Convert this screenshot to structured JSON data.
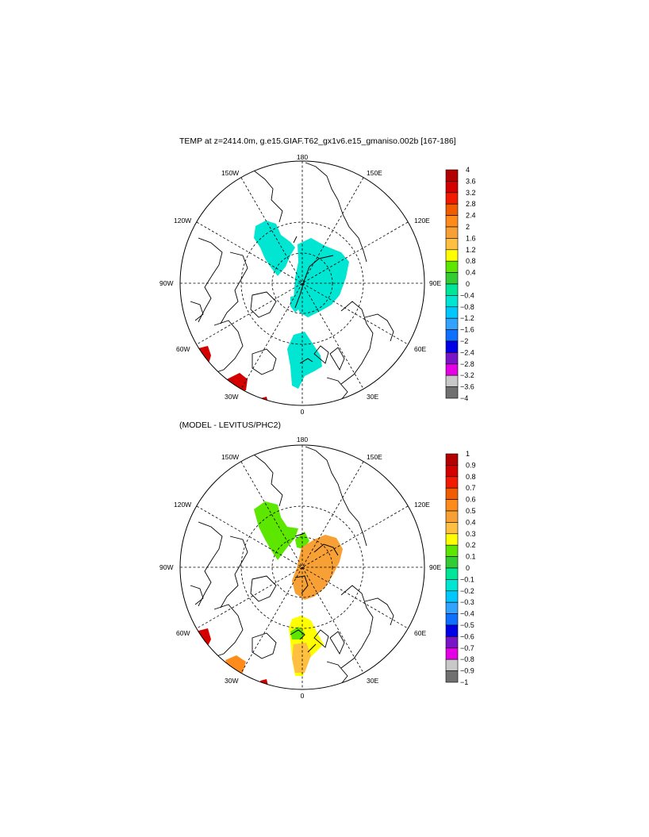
{
  "panels": [
    {
      "title": "TEMP at z=2414.0m, g.e15.GIAF.T62_gx1v6.e15_gmaniso.002b [167-186]",
      "lon_labels": {
        "top": "180",
        "bottom": "0",
        "left": "90W",
        "right": "90E",
        "ul1": "150W",
        "ul2": "120W",
        "ur1": "150E",
        "ur2": "120E",
        "ll1": "60W",
        "ll2": "30W",
        "lr1": "60E",
        "lr2": "30E"
      },
      "colorbar": {
        "labels": [
          "4",
          "3.6",
          "3.2",
          "2.8",
          "2.4",
          "2",
          "1.6",
          "1.2",
          "0.8",
          "0.4",
          "0",
          "−0.4",
          "−0.8",
          "−1.2",
          "−1.6",
          "−2",
          "−2.4",
          "−2.8",
          "−3.2",
          "−3.6",
          "−4"
        ],
        "colors": [
          "#b30000",
          "#d40000",
          "#f21a00",
          "#f25c00",
          "#ff8c1a",
          "#f7a035",
          "#ffbf40",
          "#ffff00",
          "#5ce600",
          "#33cc33",
          "#00e699",
          "#00e6d2",
          "#00c8ff",
          "#33a3ff",
          "#0f70ff",
          "#0000e6",
          "#7a14c7",
          "#e600e6",
          "#c8c8c8",
          "#707070"
        ]
      }
    },
    {
      "title": "(MODEL - LEVITUS/PHC2)",
      "lon_labels": {
        "top": "180",
        "bottom": "0",
        "left": "90W",
        "right": "90E",
        "ul1": "150W",
        "ul2": "120W",
        "ur1": "150E",
        "ur2": "120E",
        "ll1": "60W",
        "ll2": "30W",
        "lr1": "60E",
        "lr2": "30E"
      },
      "colorbar": {
        "labels": [
          "1",
          "0.9",
          "0.8",
          "0.7",
          "0.6",
          "0.5",
          "0.4",
          "0.3",
          "0.2",
          "0.1",
          "0",
          "−0.1",
          "−0.2",
          "−0.3",
          "−0.4",
          "−0.5",
          "−0.6",
          "−0.7",
          "−0.8",
          "−0.9",
          "−1"
        ],
        "colors": [
          "#b30000",
          "#d40000",
          "#f21a00",
          "#f25c00",
          "#ff8c1a",
          "#f7a035",
          "#ffbf40",
          "#ffff00",
          "#5ce600",
          "#33cc33",
          "#00e699",
          "#00e6d2",
          "#00c8ff",
          "#33a3ff",
          "#0f70ff",
          "#0000e6",
          "#7a14c7",
          "#e600e6",
          "#c8c8c8",
          "#707070"
        ]
      }
    }
  ]
}
